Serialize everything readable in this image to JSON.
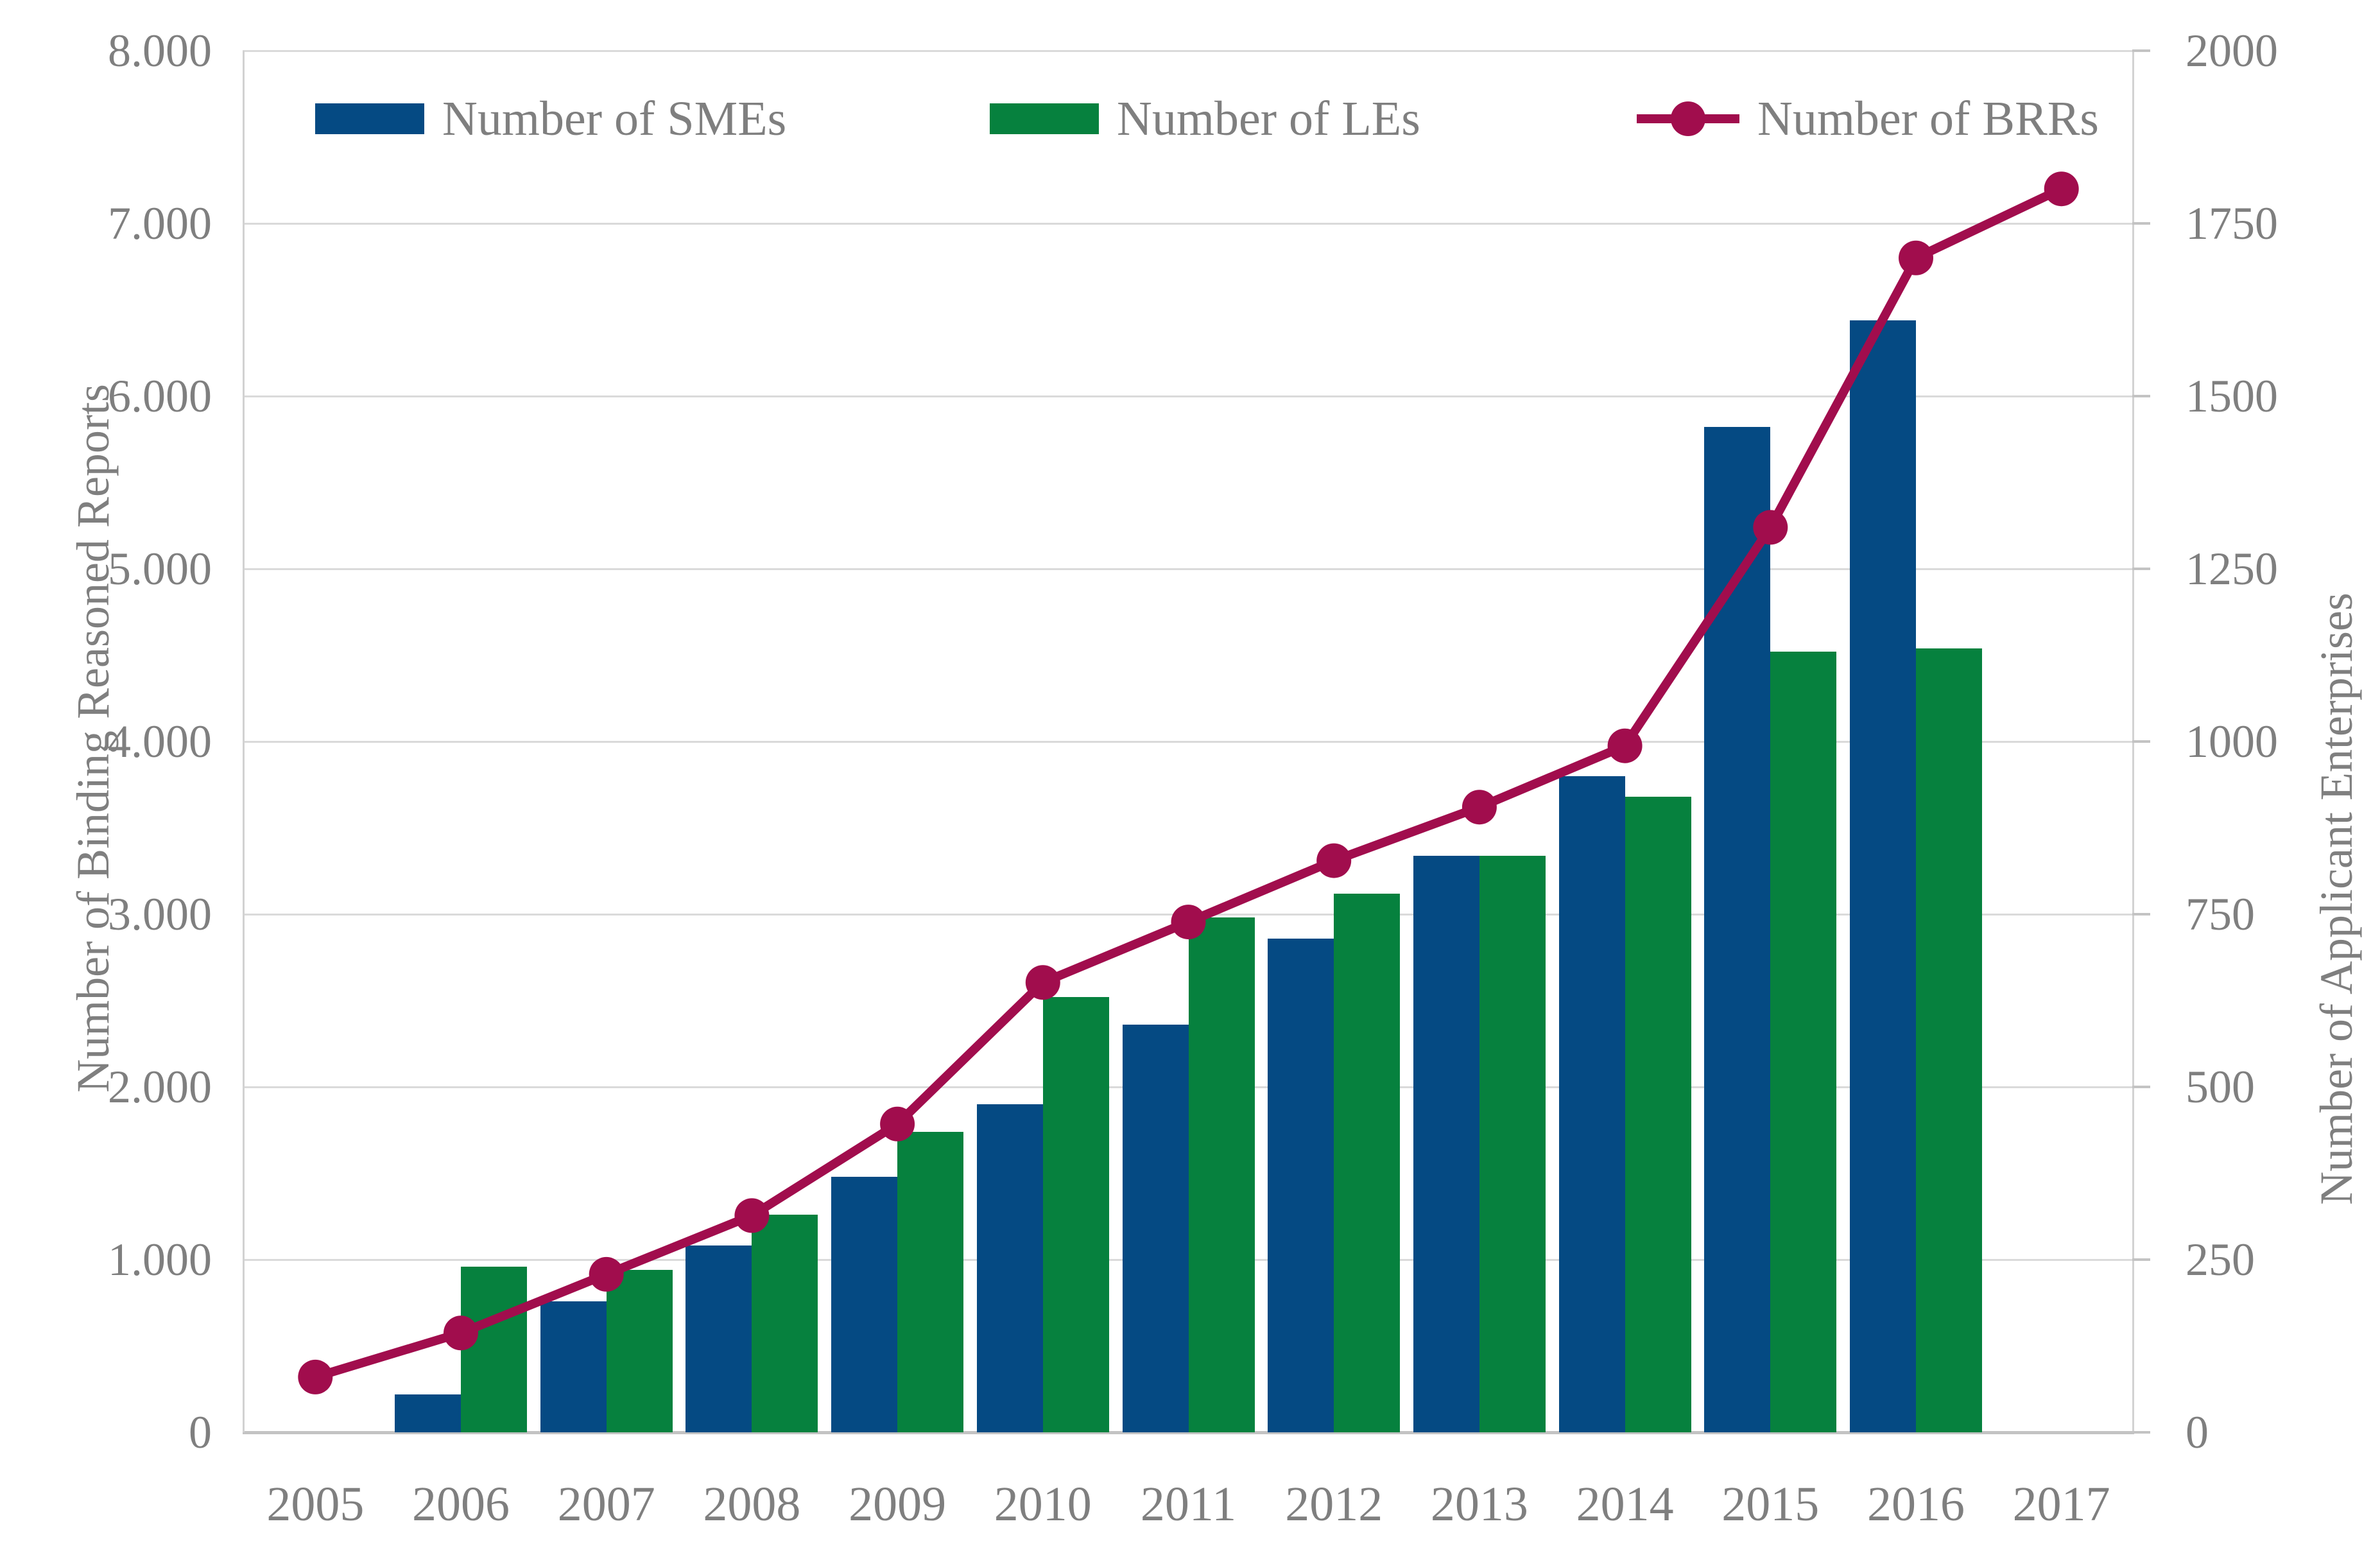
{
  "page": {
    "background": "#ffffff"
  },
  "chart_data": {
    "type": "combo",
    "title": "",
    "categories": [
      "2005",
      "2006",
      "2007",
      "2008",
      "2009",
      "2010",
      "2011",
      "2012",
      "2013",
      "2014",
      "2015",
      "2016",
      "2017"
    ],
    "series": [
      {
        "name": "Number of SMEs",
        "type": "bar",
        "axis": "right",
        "color": "#054a83",
        "values": [
          null,
          55,
          190,
          270,
          370,
          475,
          590,
          715,
          835,
          950,
          1455,
          1610,
          null
        ]
      },
      {
        "name": "Number of LEs",
        "type": "bar",
        "axis": "right",
        "color": "#06813e",
        "values": [
          null,
          240,
          235,
          315,
          435,
          630,
          745,
          780,
          835,
          920,
          1130,
          1135,
          null
        ]
      },
      {
        "name": "Number of BRRs",
        "type": "line",
        "axis": "left",
        "color": "#a10d4d",
        "values": [
          320,
          575,
          915,
          1255,
          1785,
          2605,
          2955,
          3310,
          3620,
          3975,
          5240,
          6800,
          7200
        ]
      }
    ],
    "left_axis": {
      "title": "Number of Binding Reasoned Reports",
      "min": 0,
      "max": 8000,
      "tick_step": 1000,
      "tick_labels_top_to_bottom": [
        "8.000",
        "7.000",
        "6.000",
        "5.000",
        "4.000",
        "3.000",
        "2.000",
        "1.000",
        "0"
      ]
    },
    "right_axis": {
      "title": "Number of Applicant Enterprises",
      "min": 0,
      "max": 2000,
      "tick_step": 250,
      "tick_labels_top_to_bottom": [
        "2000",
        "1750",
        "1500",
        "1250",
        "1000",
        "750",
        "500",
        "250",
        "0"
      ]
    },
    "x_axis": {
      "labels": [
        "2005",
        "2006",
        "2007",
        "2008",
        "2009",
        "2010",
        "2011",
        "2012",
        "2013",
        "2014",
        "2015",
        "2016",
        "2017"
      ]
    },
    "legend_position": "top",
    "grid": "horizontal",
    "styles": {
      "text_color": "#7f7f7f",
      "gridline_color": "#dadada",
      "axis_line_color": "#c3c3c3"
    }
  }
}
